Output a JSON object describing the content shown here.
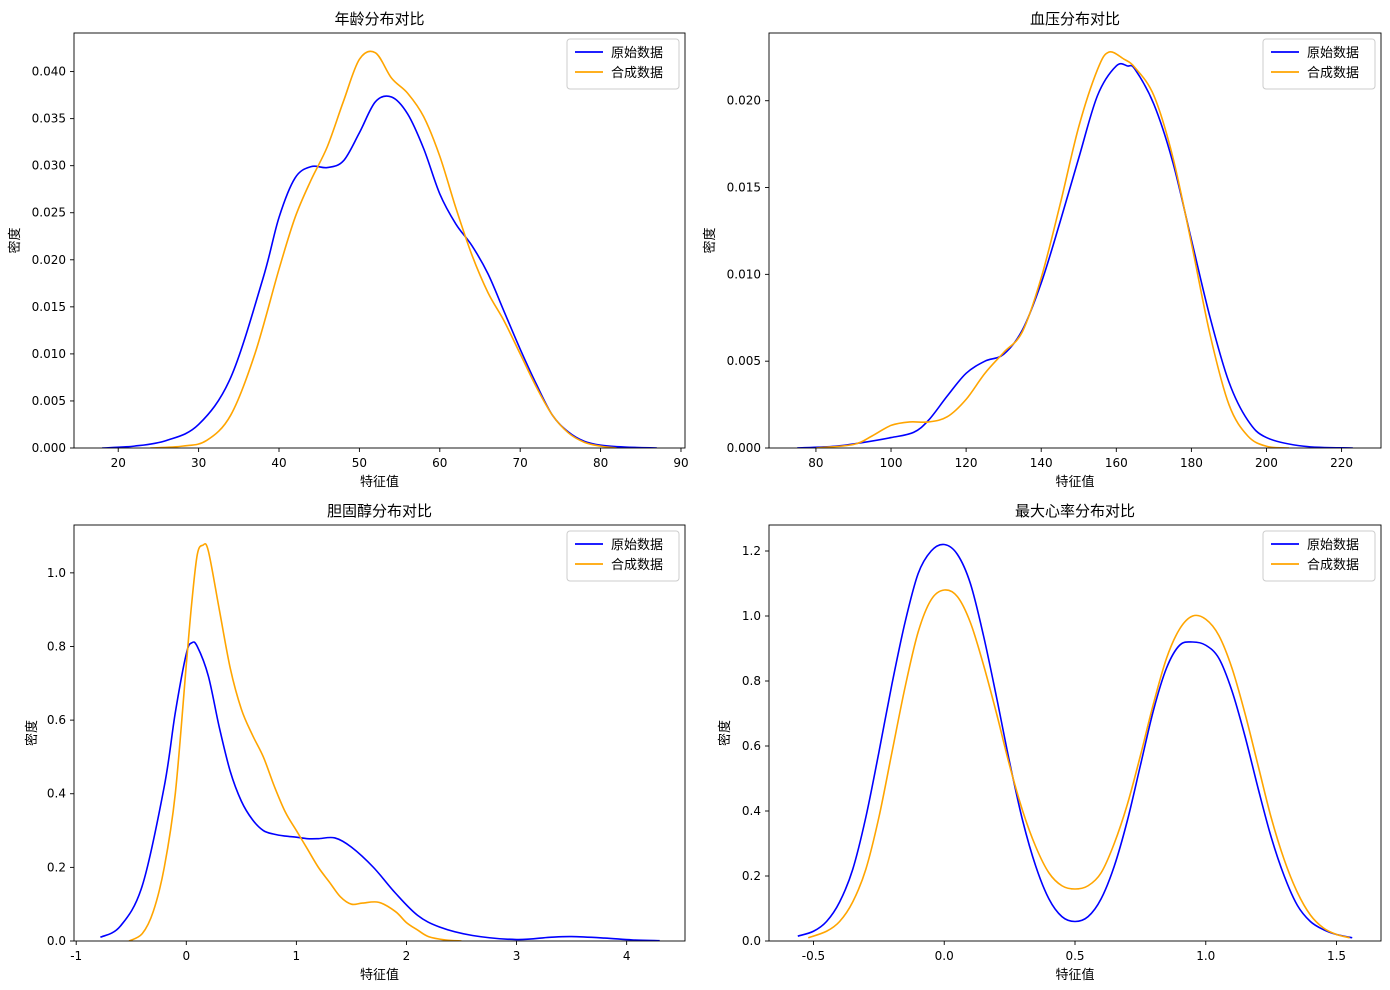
{
  "figure": {
    "legend_labels": [
      "原始数据",
      "合成数据"
    ],
    "colors": {
      "original": "#0000ff",
      "synthetic": "#ffa500"
    }
  },
  "chart_data": [
    {
      "type": "line",
      "title": "年龄分布对比",
      "xlabel": "特征值",
      "ylabel": "密度",
      "xlim": [
        14.5,
        90.5
      ],
      "ylim": [
        0,
        0.0441
      ],
      "xticks": [
        20,
        30,
        40,
        50,
        60,
        70,
        80,
        90
      ],
      "xtick_labels": [
        "20",
        "30",
        "40",
        "50",
        "60",
        "70",
        "80",
        "90"
      ],
      "yticks": [
        0,
        0.005,
        0.01,
        0.015,
        0.02,
        0.025,
        0.03,
        0.035,
        0.04
      ],
      "ytick_labels": [
        "0.000",
        "0.005",
        "0.010",
        "0.015",
        "0.020",
        "0.025",
        "0.030",
        "0.035",
        "0.040"
      ],
      "grid": false,
      "legend_position": "top-right",
      "series": [
        {
          "name": "原始数据",
          "color": "#0000ff",
          "x": [
            18,
            22,
            26,
            30,
            34,
            38,
            40,
            42,
            44,
            46,
            48,
            50,
            52,
            54,
            56,
            58,
            60,
            62,
            64,
            66,
            68,
            70,
            72,
            74,
            76,
            78,
            80,
            83,
            87
          ],
          "y": [
            0,
            0.0002,
            0.0008,
            0.0025,
            0.0075,
            0.018,
            0.0245,
            0.0287,
            0.0299,
            0.0298,
            0.0305,
            0.0335,
            0.0368,
            0.0373,
            0.0355,
            0.0318,
            0.027,
            0.0238,
            0.0215,
            0.0185,
            0.0145,
            0.0105,
            0.0068,
            0.0035,
            0.0017,
            0.0007,
            0.0003,
            0.0001,
            0
          ]
        },
        {
          "name": "合成数据",
          "color": "#ffa500",
          "x": [
            24,
            28,
            31,
            34,
            37,
            40,
            42,
            44,
            46,
            48,
            50,
            52,
            54,
            56,
            58,
            60,
            62,
            64,
            66,
            68,
            70,
            72,
            74,
            76,
            78,
            80,
            82
          ],
          "y": [
            0,
            0.0002,
            0.0008,
            0.0035,
            0.01,
            0.019,
            0.0245,
            0.0285,
            0.032,
            0.0368,
            0.0413,
            0.042,
            0.0393,
            0.0377,
            0.0352,
            0.031,
            0.0255,
            0.0205,
            0.0165,
            0.0135,
            0.01,
            0.0065,
            0.0035,
            0.0016,
            0.0006,
            0.0002,
            0
          ]
        }
      ]
    },
    {
      "type": "line",
      "title": "血压分布对比",
      "xlabel": "特征值",
      "ylabel": "密度",
      "xlim": [
        67.5,
        230.5
      ],
      "ylim": [
        0,
        0.0239
      ],
      "xticks": [
        80,
        100,
        120,
        140,
        160,
        180,
        200,
        220
      ],
      "xtick_labels": [
        "80",
        "100",
        "120",
        "140",
        "160",
        "180",
        "200",
        "220"
      ],
      "yticks": [
        0,
        0.005,
        0.01,
        0.015,
        0.02
      ],
      "ytick_labels": [
        "0.000",
        "0.005",
        "0.010",
        "0.015",
        "0.020"
      ],
      "grid": false,
      "legend_position": "top-right",
      "series": [
        {
          "name": "原始数据",
          "color": "#0000ff",
          "x": [
            75,
            85,
            92,
            100,
            106,
            110,
            115,
            120,
            125,
            130,
            135,
            140,
            145,
            150,
            155,
            160,
            163,
            165,
            170,
            175,
            180,
            185,
            190,
            195,
            200,
            210,
            223
          ],
          "y": [
            0,
            0.0001,
            0.0003,
            0.0006,
            0.0009,
            0.0016,
            0.003,
            0.0043,
            0.005,
            0.0054,
            0.0068,
            0.0095,
            0.013,
            0.0167,
            0.0203,
            0.022,
            0.022,
            0.0218,
            0.0198,
            0.0165,
            0.012,
            0.0075,
            0.0038,
            0.0016,
            0.0006,
            0.0001,
            0
          ]
        },
        {
          "name": "合成数据",
          "color": "#ffa500",
          "x": [
            80,
            90,
            95,
            100,
            105,
            110,
            115,
            120,
            125,
            130,
            135,
            140,
            145,
            150,
            155,
            158,
            162,
            165,
            170,
            175,
            180,
            185,
            190,
            195,
            200,
            206
          ],
          "y": [
            0,
            0.0002,
            0.0007,
            0.0013,
            0.0015,
            0.0015,
            0.0018,
            0.0028,
            0.0043,
            0.0055,
            0.0067,
            0.0098,
            0.014,
            0.0185,
            0.0218,
            0.0228,
            0.0224,
            0.0219,
            0.0203,
            0.0168,
            0.0118,
            0.0065,
            0.0025,
            0.0007,
            0.0001,
            0
          ]
        }
      ]
    },
    {
      "type": "line",
      "title": "胆固醇分布对比",
      "xlabel": "特征值",
      "ylabel": "密度",
      "xlim": [
        -1.02,
        4.53
      ],
      "ylim": [
        0,
        1.13
      ],
      "xticks": [
        -1,
        0,
        1,
        2,
        3,
        4
      ],
      "xtick_labels": [
        "-1",
        "0",
        "1",
        "2",
        "3",
        "4"
      ],
      "yticks": [
        0,
        0.2,
        0.4,
        0.6,
        0.8,
        1.0
      ],
      "ytick_labels": [
        "0.0",
        "0.2",
        "0.4",
        "0.6",
        "0.8",
        "1.0"
      ],
      "grid": false,
      "legend_position": "top-right",
      "series": [
        {
          "name": "原始数据",
          "color": "#0000ff",
          "x": [
            -0.78,
            -0.6,
            -0.4,
            -0.2,
            -0.1,
            0,
            0.05,
            0.1,
            0.2,
            0.3,
            0.4,
            0.5,
            0.6,
            0.7,
            0.8,
            0.9,
            1.0,
            1.1,
            1.2,
            1.35,
            1.5,
            1.7,
            1.9,
            2.1,
            2.3,
            2.6,
            3.0,
            3.3,
            3.5,
            3.8,
            4.05,
            4.3
          ],
          "y": [
            0.01,
            0.04,
            0.15,
            0.42,
            0.62,
            0.78,
            0.81,
            0.8,
            0.72,
            0.58,
            0.46,
            0.38,
            0.33,
            0.3,
            0.29,
            0.285,
            0.282,
            0.278,
            0.278,
            0.28,
            0.255,
            0.2,
            0.13,
            0.07,
            0.038,
            0.015,
            0.004,
            0.01,
            0.012,
            0.008,
            0.003,
            0.001
          ]
        },
        {
          "name": "合成数据",
          "color": "#ffa500",
          "x": [
            -0.52,
            -0.4,
            -0.3,
            -0.2,
            -0.1,
            0,
            0.05,
            0.1,
            0.15,
            0.2,
            0.3,
            0.4,
            0.5,
            0.6,
            0.7,
            0.8,
            0.9,
            1.0,
            1.1,
            1.2,
            1.3,
            1.4,
            1.5,
            1.6,
            1.75,
            1.9,
            2.0,
            2.1,
            2.2,
            2.35,
            2.5
          ],
          "y": [
            0,
            0.02,
            0.08,
            0.2,
            0.4,
            0.75,
            0.92,
            1.05,
            1.075,
            1.06,
            0.9,
            0.74,
            0.63,
            0.56,
            0.5,
            0.42,
            0.35,
            0.3,
            0.25,
            0.2,
            0.16,
            0.12,
            0.1,
            0.103,
            0.105,
            0.08,
            0.05,
            0.03,
            0.012,
            0.003,
            0
          ]
        }
      ]
    },
    {
      "type": "line",
      "title": "最大心率分布对比",
      "xlabel": "特征值",
      "ylabel": "密度",
      "xlim": [
        -0.67,
        1.67
      ],
      "ylim": [
        0,
        1.28
      ],
      "xticks": [
        -0.5,
        0.0,
        0.5,
        1.0,
        1.5
      ],
      "xtick_labels": [
        "-0.5",
        "0.0",
        "0.5",
        "1.0",
        "1.5"
      ],
      "yticks": [
        0,
        0.2,
        0.4,
        0.6,
        0.8,
        1.0,
        1.2
      ],
      "ytick_labels": [
        "0.0",
        "0.2",
        "0.4",
        "0.6",
        "0.8",
        "1.0",
        "1.2"
      ],
      "grid": false,
      "legend_position": "top-right",
      "series": [
        {
          "name": "原始数据",
          "color": "#0000ff",
          "x": [
            -0.56,
            -0.5,
            -0.45,
            -0.4,
            -0.35,
            -0.3,
            -0.25,
            -0.2,
            -0.15,
            -0.1,
            -0.05,
            0,
            0.05,
            0.1,
            0.15,
            0.2,
            0.25,
            0.3,
            0.35,
            0.4,
            0.45,
            0.5,
            0.55,
            0.6,
            0.65,
            0.7,
            0.75,
            0.8,
            0.85,
            0.9,
            0.95,
            1.0,
            1.05,
            1.1,
            1.15,
            1.2,
            1.25,
            1.3,
            1.35,
            1.4,
            1.45,
            1.5,
            1.56
          ],
          "y": [
            0.015,
            0.03,
            0.06,
            0.12,
            0.22,
            0.38,
            0.58,
            0.79,
            0.98,
            1.13,
            1.2,
            1.22,
            1.19,
            1.1,
            0.94,
            0.75,
            0.55,
            0.37,
            0.23,
            0.13,
            0.075,
            0.06,
            0.075,
            0.13,
            0.23,
            0.37,
            0.54,
            0.71,
            0.84,
            0.91,
            0.92,
            0.91,
            0.87,
            0.77,
            0.63,
            0.47,
            0.32,
            0.2,
            0.11,
            0.06,
            0.035,
            0.02,
            0.01
          ]
        },
        {
          "name": "合成数据",
          "color": "#ffa500",
          "x": [
            -0.52,
            -0.45,
            -0.4,
            -0.35,
            -0.3,
            -0.25,
            -0.2,
            -0.15,
            -0.1,
            -0.05,
            0,
            0.05,
            0.1,
            0.15,
            0.2,
            0.25,
            0.3,
            0.35,
            0.4,
            0.45,
            0.5,
            0.55,
            0.6,
            0.65,
            0.7,
            0.75,
            0.8,
            0.85,
            0.9,
            0.95,
            1.0,
            1.05,
            1.1,
            1.15,
            1.2,
            1.25,
            1.3,
            1.35,
            1.4,
            1.45,
            1.5,
            1.55
          ],
          "y": [
            0.01,
            0.03,
            0.06,
            0.12,
            0.22,
            0.38,
            0.58,
            0.78,
            0.95,
            1.05,
            1.08,
            1.06,
            0.98,
            0.85,
            0.7,
            0.54,
            0.4,
            0.29,
            0.21,
            0.17,
            0.16,
            0.17,
            0.21,
            0.3,
            0.42,
            0.57,
            0.73,
            0.87,
            0.96,
            1.0,
            0.99,
            0.94,
            0.84,
            0.7,
            0.54,
            0.38,
            0.25,
            0.15,
            0.08,
            0.04,
            0.02,
            0.01
          ]
        }
      ]
    }
  ]
}
